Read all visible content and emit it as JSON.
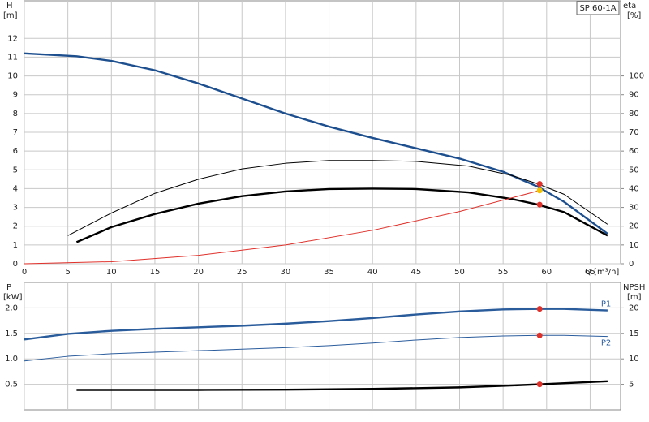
{
  "chart_data": [
    {
      "type": "line",
      "title": "SP 60-1A",
      "xlabel": "Q [m³/h]",
      "ylabel": "H",
      "yunit": "[m]",
      "y2label": "eta",
      "y2unit": "[%]",
      "xlim": [
        0,
        68.5
      ],
      "xticks": [
        0,
        5,
        10,
        15,
        20,
        25,
        30,
        35,
        40,
        45,
        50,
        55,
        60,
        65
      ],
      "ylim": [
        0,
        14
      ],
      "yticks": [
        0,
        1,
        2,
        3,
        4,
        5,
        6,
        7,
        8,
        9,
        10,
        11,
        12
      ],
      "y2lim": [
        0,
        140
      ],
      "y2ticks": [
        0,
        10,
        20,
        30,
        40,
        50,
        60,
        70,
        80,
        90,
        100
      ],
      "grid": true,
      "series": [
        {
          "color": "#1d4f8f",
          "style": "thick",
          "axis": "y",
          "x": [
            0,
            6,
            10,
            15,
            20,
            25,
            30,
            35,
            40,
            45,
            50,
            55,
            59,
            62,
            67
          ],
          "values": [
            11.2,
            11.05,
            10.8,
            10.3,
            9.6,
            8.8,
            8.0,
            7.3,
            6.7,
            6.15,
            5.6,
            4.9,
            4.1,
            3.3,
            1.6
          ]
        },
        {
          "color": "#000000",
          "style": "thin",
          "axis": "y2",
          "x": [
            5,
            10,
            15,
            20,
            25,
            30,
            35,
            40,
            45,
            51,
            56,
            59,
            62,
            67
          ],
          "values": [
            15,
            27,
            37.5,
            45,
            50.5,
            53.5,
            55,
            55,
            54.5,
            52,
            47,
            42.5,
            37,
            21
          ]
        },
        {
          "color": "#000000",
          "style": "thick",
          "axis": "y2",
          "x": [
            6,
            10,
            15,
            20,
            25,
            30,
            35,
            40,
            45,
            51,
            56,
            59,
            62,
            67
          ],
          "values": [
            11.5,
            19.5,
            26.5,
            32,
            36,
            38.5,
            39.8,
            40,
            39.8,
            38,
            34.5,
            31.5,
            27.5,
            15
          ]
        },
        {
          "color": "#e0302a",
          "style": "thin",
          "axis": "y",
          "x": [
            0,
            10,
            20,
            30,
            40,
            50,
            59.2
          ],
          "values": [
            0,
            0.11,
            0.45,
            1.0,
            1.78,
            2.78,
            3.9
          ]
        }
      ],
      "markers": [
        {
          "x": 59.2,
          "y": 42.5,
          "axis": "y2",
          "color": "#e0302a"
        },
        {
          "x": 59.2,
          "y": 31.5,
          "axis": "y2",
          "color": "#e0302a"
        },
        {
          "x": 59.2,
          "y": 3.9,
          "axis": "y",
          "color": "#f2c200"
        }
      ]
    },
    {
      "type": "line",
      "ylabel": "P",
      "yunit": "[kW]",
      "y2label": "NPSH",
      "y2unit": "[m]",
      "xlim": [
        0,
        68.5
      ],
      "xticks": [
        0,
        5,
        10,
        15,
        20,
        25,
        30,
        35,
        40,
        45,
        50,
        55,
        60,
        65
      ],
      "ylim": [
        0,
        2.5
      ],
      "yticks": [
        0.5,
        {
          "value": 1,
          "label": "1.0"
        },
        1.5,
        {
          "value": 2,
          "label": "2.0"
        }
      ],
      "y2lim": [
        0,
        25
      ],
      "y2ticks": [
        5,
        10,
        15,
        20
      ],
      "grid": true,
      "series": [
        {
          "name": "P1",
          "color": "#2a5c9c",
          "style": "thick",
          "axis": "y",
          "label_position": "above",
          "x": [
            0,
            5,
            10,
            15,
            20,
            25,
            30,
            35,
            40,
            45,
            50,
            55,
            59.2,
            62,
            67
          ],
          "values": [
            1.38,
            1.49,
            1.55,
            1.59,
            1.62,
            1.65,
            1.69,
            1.74,
            1.8,
            1.87,
            1.93,
            1.97,
            1.98,
            1.98,
            1.95
          ]
        },
        {
          "name": "P2",
          "color": "#2a5c9c",
          "style": "thin",
          "axis": "y",
          "label_position": "below",
          "x": [
            0,
            5,
            10,
            15,
            20,
            25,
            30,
            35,
            40,
            45,
            50,
            55,
            59.2,
            62,
            67
          ],
          "values": [
            0.96,
            1.05,
            1.1,
            1.13,
            1.16,
            1.19,
            1.22,
            1.26,
            1.31,
            1.37,
            1.42,
            1.45,
            1.46,
            1.46,
            1.44
          ]
        },
        {
          "color": "#000000",
          "style": "thick",
          "axis": "y2",
          "x": [
            6,
            20,
            30,
            40,
            50,
            55,
            59.2,
            67
          ],
          "values": [
            3.9,
            3.9,
            3.95,
            4.1,
            4.4,
            4.7,
            5.0,
            5.6
          ]
        }
      ],
      "markers": [
        {
          "x": 59.2,
          "y": 1.98,
          "axis": "y",
          "color": "#e0302a"
        },
        {
          "x": 59.2,
          "y": 1.46,
          "axis": "y",
          "color": "#e0302a"
        },
        {
          "x": 59.2,
          "y": 5.0,
          "axis": "y2",
          "color": "#e0302a"
        }
      ]
    }
  ]
}
